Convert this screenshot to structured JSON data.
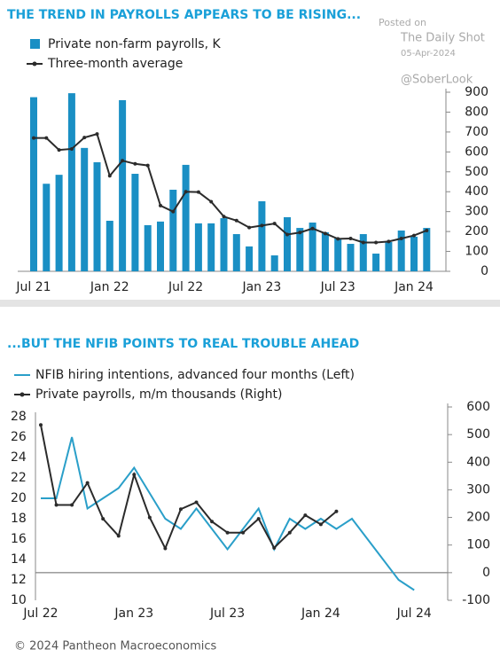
{
  "chart_data": [
    {
      "type": "bar",
      "title": "THE TREND IN PAYROLLS APPEARS TO BE RISING...",
      "categories": [
        "Jul 21",
        null,
        null,
        null,
        null,
        null,
        "Jan 22",
        null,
        null,
        null,
        null,
        null,
        "Jul 22",
        null,
        null,
        null,
        null,
        null,
        "Jan 23",
        null,
        null,
        null,
        null,
        null,
        "Jul 23",
        null,
        null,
        null,
        null,
        null,
        "Jan 24",
        null
      ],
      "series": [
        {
          "name": "Private non-farm payrolls, K",
          "type": "bar",
          "color": "#1a8fc4",
          "values": [
            875,
            440,
            485,
            895,
            620,
            548,
            254,
            860,
            490,
            232,
            250,
            410,
            535,
            241,
            241,
            267,
            187,
            125,
            352,
            80,
            272,
            218,
            245,
            196,
            165,
            138,
            187,
            89,
            147,
            205,
            174,
            218
          ]
        },
        {
          "name": "Three-month average",
          "type": "line",
          "color": "#2b2b2b",
          "values": [
            670,
            670,
            610,
            615,
            672,
            690,
            480,
            556,
            540,
            532,
            330,
            300,
            400,
            398,
            350,
            275,
            255,
            220,
            230,
            240,
            185,
            195,
            215,
            190,
            163,
            165,
            145,
            145,
            150,
            165,
            180,
            205
          ]
        }
      ],
      "ylim": [
        0,
        900
      ],
      "yticks": [
        0,
        100,
        200,
        300,
        400,
        500,
        600,
        700,
        800,
        900
      ],
      "axis_side": "right"
    },
    {
      "type": "line",
      "title": "...BUT THE NFIB POINTS TO REAL TROUBLE AHEAD",
      "categories": [
        "Jul 22",
        null,
        null,
        null,
        null,
        null,
        "Jan 23",
        null,
        null,
        null,
        null,
        null,
        "Jul 23",
        null,
        null,
        null,
        null,
        null,
        "Jan 24",
        null,
        null,
        null,
        null,
        null,
        "Jul 24"
      ],
      "series": [
        {
          "name": "NFIB hiring intentions, advanced four months (Left)",
          "color": "#2a9fc9",
          "values": [
            20,
            20,
            26,
            19,
            20,
            21,
            23,
            20.5,
            18,
            17,
            19,
            17,
            15,
            17,
            19,
            15,
            18,
            17,
            18,
            17,
            18,
            16,
            14,
            12,
            11
          ]
        },
        {
          "name": "Private payrolls, m/m thousands (Right)",
          "color": "#2b2b2b",
          "axis": "y2",
          "values": [
            535,
            245,
            245,
            325,
            195,
            133,
            355,
            200,
            88,
            230,
            255,
            185,
            145,
            145,
            195,
            90,
            145,
            208,
            175,
            222,
            null,
            null,
            null,
            null,
            null
          ]
        }
      ],
      "ylim": [
        10,
        28
      ],
      "yticks": [
        10,
        12,
        14,
        16,
        18,
        20,
        22,
        24,
        26,
        28
      ],
      "y2lim": [
        -100,
        600
      ],
      "y2ticks": [
        -100,
        0,
        100,
        200,
        300,
        400,
        500,
        600
      ]
    }
  ],
  "watermark": [
    "Posted on",
    "The Daily Shot",
    "05-Apr-2024",
    "@SoberLook"
  ],
  "footer": "© 2024 Pantheon Macroeconomics"
}
